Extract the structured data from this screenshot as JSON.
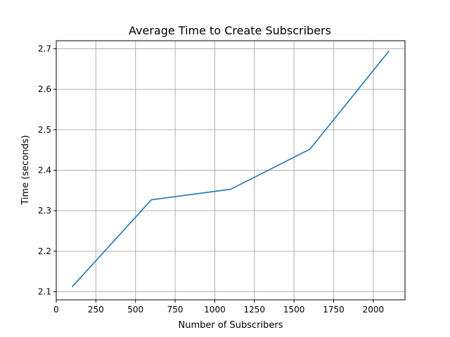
{
  "chart_data": {
    "type": "line",
    "title": "Average Time to Create Subscribers",
    "xlabel": "Number of Subscribers",
    "ylabel": "Time (seconds)",
    "xlim": [
      0,
      2200
    ],
    "ylim": [
      2.08,
      2.72
    ],
    "xticks": [
      0,
      250,
      500,
      750,
      1000,
      1250,
      1500,
      1750,
      2000
    ],
    "yticks": [
      2.1,
      2.2,
      2.3,
      2.4,
      2.5,
      2.6,
      2.7
    ],
    "grid": true,
    "series": [
      {
        "color": "#1f77b4",
        "x": [
          100,
          600,
          1100,
          1600,
          2100
        ],
        "y": [
          2.112,
          2.327,
          2.353,
          2.452,
          2.695
        ]
      }
    ]
  }
}
